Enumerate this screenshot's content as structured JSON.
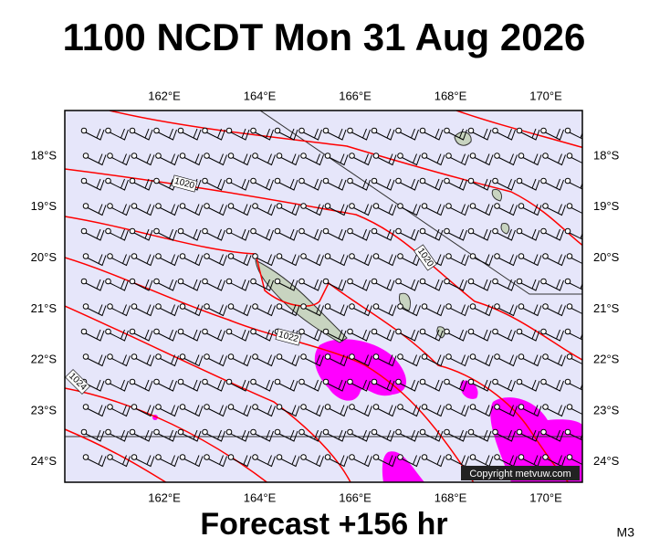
{
  "header": {
    "title": "1100 NCDT Mon 31 Aug 2026"
  },
  "footer": {
    "forecast": "Forecast +156 hr",
    "model": "M3"
  },
  "map": {
    "lon_labels": [
      "162°E",
      "164°E",
      "166°E",
      "168°E",
      "170°E"
    ],
    "lat_labels": [
      "18°S",
      "19°S",
      "20°S",
      "21°S",
      "22°S",
      "23°S",
      "24°S"
    ],
    "isobar_labels": [
      "1020",
      "1020",
      "1022",
      "1024"
    ],
    "copyright": "Copyright metvuw.com"
  }
}
